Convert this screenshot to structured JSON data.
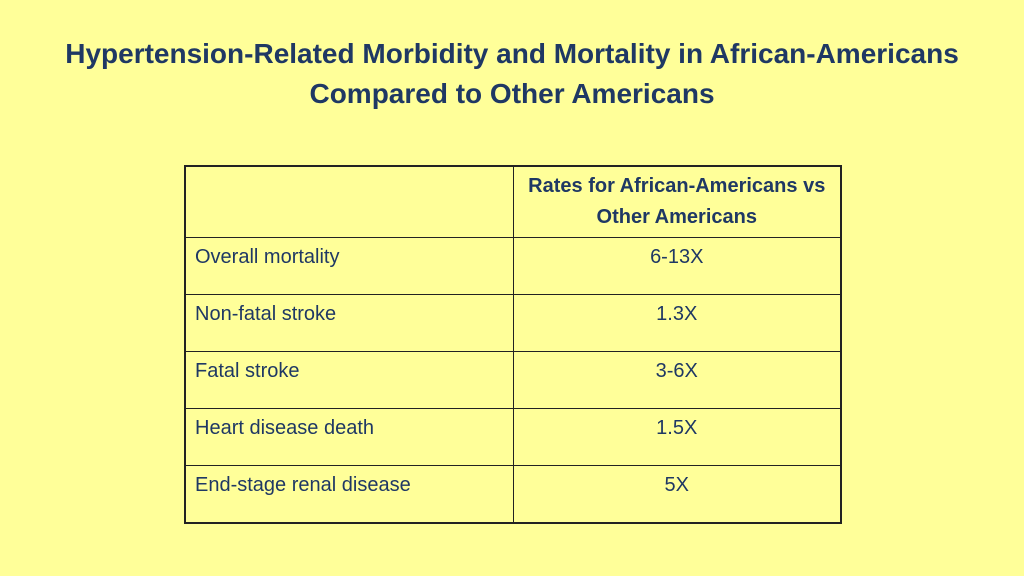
{
  "slide": {
    "title": "Hypertension-Related Morbidity and Mortality in African-Americans Compared to Other Americans",
    "colors": {
      "background": "#FFFF99",
      "text": "#1F3864",
      "border": "#222222"
    }
  },
  "table": {
    "header": {
      "label": "",
      "value": "Rates for African-Americans vs Other Americans"
    },
    "rows": [
      {
        "label": "Overall mortality",
        "value": "6-13X"
      },
      {
        "label": "Non-fatal stroke",
        "value": "1.3X"
      },
      {
        "label": "Fatal stroke",
        "value": "3-6X"
      },
      {
        "label": "Heart disease death",
        "value": "1.5X"
      },
      {
        "label": "End-stage renal disease",
        "value": "5X"
      }
    ]
  }
}
